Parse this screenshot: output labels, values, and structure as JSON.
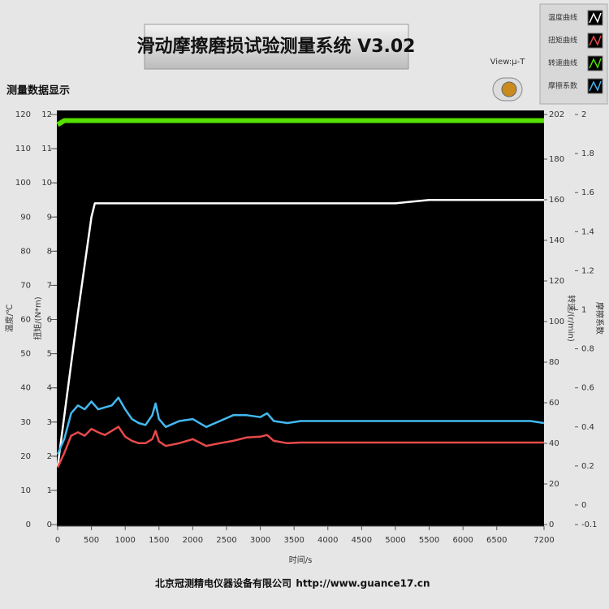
{
  "header": {
    "title": "滑动摩擦磨损试验测量系统 V3.02",
    "section": "测量数据显示",
    "view_button": "View:μ-T"
  },
  "footer": {
    "company": "北京冠测精电仪器设备有限公司",
    "url": "http://www.guance17.cn"
  },
  "chart_data": {
    "type": "line",
    "x_label": "时间/s",
    "y_label": "温度/℃",
    "y2_label": "扭矩/(N*m)",
    "y3_label": "转速/(r/min)",
    "y4_label": "摩擦系数",
    "x": [
      0,
      100,
      200,
      300,
      400,
      500,
      550,
      600,
      700,
      800,
      900,
      1000,
      1100,
      1200,
      1300,
      1400,
      1450,
      1500,
      1600,
      1800,
      2000,
      2200,
      2400,
      2600,
      2800,
      3000,
      3100,
      3200,
      3400,
      3600,
      4000,
      4500,
      5000,
      5500,
      6000,
      6500,
      7000,
      7200
    ],
    "xlim": [
      0,
      7200
    ],
    "xticks": [
      0,
      500,
      1000,
      1500,
      2000,
      2500,
      3000,
      3500,
      4000,
      4500,
      5000,
      5500,
      6000,
      6500,
      7200
    ],
    "ylim": [
      0,
      120
    ],
    "yticks": [
      0,
      10,
      20,
      30,
      40,
      50,
      60,
      70,
      80,
      90,
      100,
      110,
      120
    ],
    "y2lim": [
      0,
      12
    ],
    "y2ticks": [
      0,
      1,
      2,
      3,
      4,
      5,
      6,
      7,
      8,
      9,
      10,
      11,
      12
    ],
    "y3lim": [
      0,
      202
    ],
    "y3ticks": [
      0,
      20,
      40,
      60,
      80,
      100,
      120,
      140,
      160,
      180,
      202
    ],
    "y4lim": [
      -0.1,
      2
    ],
    "y4ticks": [
      -0.1,
      0,
      0.2,
      0.4,
      0.6,
      0.8,
      1,
      1.2,
      1.4,
      1.6,
      1.8,
      2
    ],
    "series": [
      {
        "name": "温度曲线",
        "color": "#ffffff",
        "axis": "y",
        "values": [
          17,
          32,
          47,
          62,
          76,
          90,
          94,
          94,
          94,
          94,
          94,
          94,
          94,
          94,
          94,
          94,
          94,
          94,
          94,
          94,
          94,
          94,
          94,
          94,
          94,
          94,
          94,
          94,
          94,
          94,
          94,
          94,
          94,
          95,
          95,
          95,
          95,
          95
        ]
      },
      {
        "name": "扭矩曲线",
        "color": "#e84a4a",
        "axis": "y2",
        "values": [
          1.67,
          2.1,
          2.6,
          2.7,
          2.6,
          2.8,
          2.75,
          2.7,
          2.62,
          2.74,
          2.86,
          2.57,
          2.45,
          2.38,
          2.38,
          2.5,
          2.74,
          2.43,
          2.3,
          2.38,
          2.5,
          2.3,
          2.38,
          2.45,
          2.55,
          2.57,
          2.62,
          2.45,
          2.38,
          2.4,
          2.4,
          2.4,
          2.4,
          2.4,
          2.4,
          2.4,
          2.4,
          2.4
        ]
      },
      {
        "name": "转速曲线",
        "color": "#55e000",
        "axis": "y3",
        "values": [
          197,
          199,
          199,
          199,
          199,
          199,
          199,
          199,
          199,
          199,
          199,
          199,
          199,
          199,
          199,
          199,
          199,
          199,
          199,
          199,
          199,
          199,
          199,
          199,
          199,
          199,
          199,
          199,
          199,
          199,
          199,
          199,
          199,
          199,
          199,
          199,
          199,
          199
        ]
      },
      {
        "name": "摩擦系数",
        "color": "#44b8f0",
        "axis": "y4",
        "values": [
          0.26,
          0.34,
          0.47,
          0.51,
          0.49,
          0.53,
          0.51,
          0.49,
          0.5,
          0.51,
          0.55,
          0.49,
          0.44,
          0.42,
          0.41,
          0.46,
          0.52,
          0.44,
          0.4,
          0.43,
          0.44,
          0.4,
          0.43,
          0.46,
          0.46,
          0.45,
          0.47,
          0.43,
          0.42,
          0.43,
          0.43,
          0.43,
          0.43,
          0.43,
          0.43,
          0.43,
          0.43,
          0.42
        ]
      }
    ]
  }
}
